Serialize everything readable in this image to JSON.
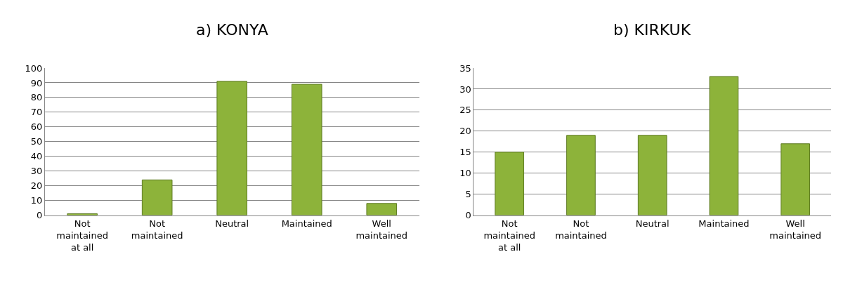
{
  "chart_data": [
    {
      "type": "bar",
      "title": "a) KONYA",
      "categories": [
        "Not\nmaintained\nat all",
        "Not\nmaintained",
        "Neutral",
        "Maintained",
        "Well\nmaintained"
      ],
      "values": [
        1,
        24,
        91,
        89,
        8
      ],
      "color": "#8db33a",
      "ylim": [
        0,
        100
      ],
      "yticks": [
        0,
        10,
        20,
        30,
        40,
        50,
        60,
        70,
        80,
        90,
        100
      ],
      "grid": "y"
    },
    {
      "type": "bar",
      "title": "b) KIRKUK",
      "categories": [
        "Not\nmaintained\nat all",
        "Not\nmaintained",
        "Neutral",
        "Maintained",
        "Well\nmaintained"
      ],
      "values": [
        15,
        19,
        19,
        33,
        17
      ],
      "color": "#8db33a",
      "ylim": [
        0,
        35
      ],
      "yticks": [
        0,
        5,
        10,
        15,
        20,
        25,
        30,
        35
      ],
      "grid": "y"
    }
  ]
}
